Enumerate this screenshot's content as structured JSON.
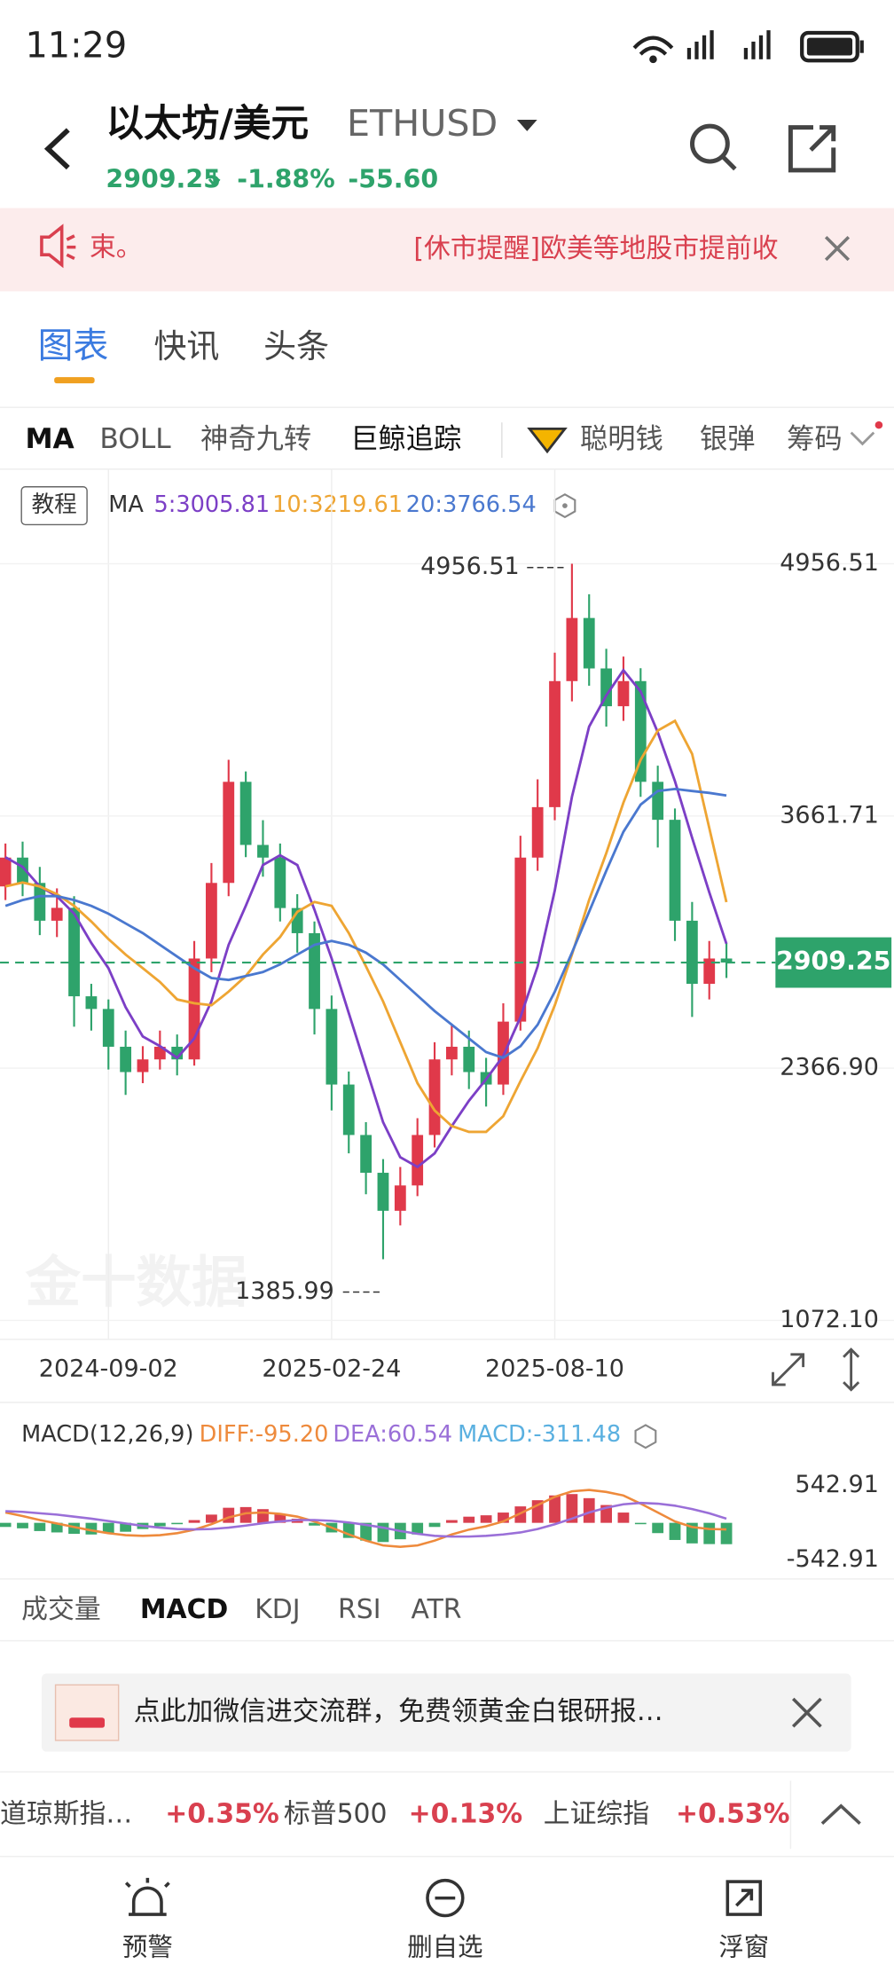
{
  "status_bar": {
    "time": "11:29"
  },
  "header": {
    "title": "以太坊/美元",
    "symbol": "ETHUSD",
    "price": "2909.25",
    "change_percent": "-1.88%",
    "change_value": "-55.60"
  },
  "notice": {
    "tail": "束。",
    "text": "[休市提醒]欧美等地股市提前收"
  },
  "tabs": [
    "图表",
    "快讯",
    "头条"
  ],
  "indicators": [
    "MA",
    "BOLL",
    "神奇九转",
    "巨鲸追踪",
    "聪明钱",
    "银弹",
    "筹码"
  ],
  "chart_data": [
    {
      "type": "candlestick",
      "tutorial": "教程",
      "legend_title": "MA",
      "watermark": "金十数据",
      "up_color": "#e0394a",
      "down_color": "#2ea36b",
      "categories": [
        null,
        null,
        null,
        null,
        null,
        null,
        "2024-09-02",
        null,
        null,
        null,
        null,
        null,
        null,
        null,
        null,
        null,
        null,
        null,
        null,
        "2025-02-24",
        null,
        null,
        null,
        null,
        null,
        null,
        null,
        null,
        null,
        null,
        null,
        null,
        "2025-08-10",
        null,
        null,
        null,
        null,
        null,
        null,
        null,
        null,
        null,
        null
      ],
      "open": [
        3300,
        3448,
        3318,
        3124,
        3190,
        2736,
        2671,
        2477,
        2347,
        2412,
        2477,
        2412,
        2930,
        3318,
        3837,
        3513,
        3448,
        3189,
        3060,
        2671,
        2283,
        2024,
        1830,
        1635,
        1765,
        2024,
        2412,
        2477,
        2347,
        2283,
        2606,
        3448,
        3707,
        4354,
        4678,
        4419,
        4225,
        4354,
        3837,
        3642,
        3124,
        2800,
        2930
      ],
      "high": [
        3520,
        3530,
        3400,
        3290,
        3250,
        2800,
        2720,
        2560,
        2480,
        2560,
        2540,
        3020,
        3420,
        3950,
        3890,
        3640,
        3520,
        3260,
        3120,
        2740,
        2350,
        2090,
        1900,
        1860,
        2110,
        2500,
        2590,
        2560,
        2420,
        2700,
        3560,
        3850,
        4500,
        4956.51,
        4800,
        4520,
        4480,
        4420,
        3920,
        3700,
        3220,
        3020,
        3010
      ],
      "low": [
        3230,
        3250,
        3050,
        3040,
        2580,
        2560,
        2360,
        2230,
        2290,
        2360,
        2330,
        2380,
        2860,
        3250,
        3450,
        3350,
        3120,
        2960,
        2540,
        2150,
        1930,
        1720,
        1385.99,
        1560,
        1710,
        1960,
        2330,
        2260,
        2170,
        2230,
        2560,
        3380,
        3640,
        4250,
        4330,
        4120,
        4150,
        3760,
        3500,
        3020,
        2630,
        2720,
        2830
      ],
      "close": [
        3448,
        3318,
        3124,
        3190,
        2736,
        2671,
        2477,
        2347,
        2412,
        2477,
        2412,
        2930,
        3318,
        3837,
        3513,
        3448,
        3189,
        3060,
        2671,
        2283,
        2024,
        1830,
        1635,
        1765,
        2024,
        2412,
        2477,
        2347,
        2283,
        2606,
        3448,
        3707,
        4354,
        4678,
        4419,
        4225,
        4354,
        3837,
        3642,
        3124,
        2800,
        2930,
        2909.25
      ],
      "lines": [
        {
          "label": "5:3005.81",
          "color": "#7c3fc6",
          "values": [
            3450,
            3400,
            3300,
            3250,
            3160,
            3010,
            2880,
            2680,
            2530,
            2480,
            2420,
            2520,
            2710,
            3000,
            3200,
            3410,
            3460,
            3410,
            3180,
            2930,
            2650,
            2370,
            2090,
            1910,
            1860,
            1930,
            2070,
            2200,
            2310,
            2430,
            2630,
            2890,
            3280,
            3760,
            4120,
            4280,
            4410,
            4300,
            4090,
            3840,
            3550,
            3270,
            3005.81
          ]
        },
        {
          "label": "10:3219.61",
          "color": "#eea533",
          "values": [
            3300,
            3320,
            3300,
            3260,
            3200,
            3120,
            3030,
            2950,
            2880,
            2810,
            2720,
            2700,
            2690,
            2760,
            2840,
            2950,
            3040,
            3170,
            3220,
            3200,
            3060,
            2890,
            2710,
            2500,
            2290,
            2150,
            2070,
            2040,
            2040,
            2120,
            2300,
            2470,
            2690,
            2950,
            3230,
            3470,
            3730,
            3950,
            4100,
            4150,
            3980,
            3600,
            3219.61
          ]
        },
        {
          "label": "20:3766.54",
          "color": "#4a78cf",
          "values": [
            3200,
            3230,
            3250,
            3250,
            3230,
            3200,
            3160,
            3110,
            3060,
            3000,
            2940,
            2880,
            2830,
            2820,
            2840,
            2860,
            2900,
            2950,
            3000,
            3020,
            3000,
            2960,
            2900,
            2820,
            2740,
            2660,
            2590,
            2520,
            2450,
            2420,
            2480,
            2590,
            2760,
            2960,
            3170,
            3380,
            3580,
            3720,
            3790,
            3800,
            3790,
            3780,
            3766.54
          ]
        }
      ],
      "high_annotation": 4956.51,
      "low_annotation": 1385.99,
      "last": 2909.25,
      "last_color": "#2ea36b",
      "ylim": [
        1072.1,
        4956.51
      ],
      "yticks": [
        4956.51,
        3661.71,
        {
          "value": 2366.9,
          "label": "2366.90"
        },
        {
          "value": 1072.1,
          "label": "1072.10"
        }
      ],
      "grid": true
    },
    {
      "type": "macd",
      "title": "MACD(12,26,9)",
      "series": [
        {
          "name": "DIFF:-95.20",
          "color": "#ee8a3c",
          "values": [
            150,
            100,
            40,
            -10,
            -60,
            -110,
            -150,
            -180,
            -190,
            -180,
            -150,
            -100,
            -20,
            80,
            140,
            150,
            130,
            90,
            20,
            -70,
            -170,
            -260,
            -330,
            -350,
            -330,
            -260,
            -170,
            -100,
            -50,
            20,
            140,
            260,
            380,
            460,
            480,
            450,
            400,
            280,
            150,
            20,
            -60,
            -90,
            -95.2
          ]
        },
        {
          "name": "DEA:60.54",
          "color": "#9a6fd8",
          "values": [
            170,
            160,
            140,
            120,
            90,
            60,
            25,
            -10,
            -45,
            -70,
            -90,
            -95,
            -90,
            -70,
            -40,
            -5,
            20,
            40,
            40,
            30,
            5,
            -30,
            -70,
            -120,
            -160,
            -190,
            -200,
            -200,
            -190,
            -170,
            -140,
            -90,
            -20,
            60,
            150,
            220,
            270,
            290,
            280,
            250,
            200,
            140,
            60.54
          ]
        },
        {
          "name": "MACD:-311.48",
          "color": "#5ab0e0",
          "bars": true,
          "values": [
            -60,
            -80,
            -120,
            -140,
            -160,
            -170,
            -150,
            -130,
            -90,
            -50,
            -20,
            40,
            120,
            220,
            230,
            200,
            130,
            60,
            -40,
            -140,
            -220,
            -260,
            -280,
            -240,
            -170,
            -60,
            40,
            90,
            110,
            150,
            240,
            330,
            400,
            420,
            360,
            260,
            150,
            -20,
            -150,
            -250,
            -300,
            -310,
            -311.48
          ]
        }
      ],
      "up_color": "#d9404f",
      "down_color": "#3aa86c",
      "ylim": [
        -542.91,
        542.91
      ],
      "yticks": [
        542.91,
        -542.91
      ]
    }
  ],
  "sub_tabs": [
    "成交量",
    "MACD",
    "KDJ",
    "RSI",
    "ATR"
  ],
  "banner": {
    "text": "点此加微信进交流群，免费领黄金白银研报…"
  },
  "tickers": [
    {
      "name": "道琼斯指…",
      "change": "+0.35%"
    },
    {
      "name": "标普500",
      "change": "+0.13%"
    },
    {
      "name": "上证综指",
      "change": "+0.53%"
    }
  ],
  "nav": [
    "预警",
    "删自选",
    "浮窗"
  ]
}
